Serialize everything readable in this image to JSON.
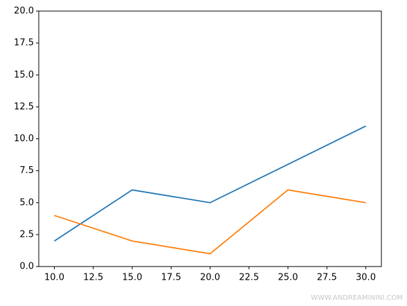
{
  "chart_data": {
    "type": "line",
    "x": [
      10,
      15,
      20,
      25,
      30
    ],
    "series": [
      {
        "color": "#1f77b4",
        "values": [
          2,
          6,
          5,
          8,
          11
        ]
      },
      {
        "color": "#ff7f0e",
        "values": [
          4,
          2,
          1,
          6,
          5
        ]
      }
    ],
    "xlim": [
      9,
      31
    ],
    "xticks": [
      {
        "value": 10,
        "label": "10.0"
      },
      {
        "value": 12.5,
        "label": "12.5"
      },
      {
        "value": 15,
        "label": "15.0"
      },
      {
        "value": 17.5,
        "label": "17.5"
      },
      {
        "value": 20,
        "label": "20.0"
      },
      {
        "value": 22.5,
        "label": "22.5"
      },
      {
        "value": 25,
        "label": "25.0"
      },
      {
        "value": 27.5,
        "label": "27.5"
      },
      {
        "value": 30,
        "label": "30.0"
      }
    ],
    "ylim": [
      0,
      20
    ],
    "yticks": [
      {
        "value": 0,
        "label": "0.0"
      },
      {
        "value": 2.5,
        "label": "2.5"
      },
      {
        "value": 5,
        "label": "5.0"
      },
      {
        "value": 7.5,
        "label": "7.5"
      },
      {
        "value": 10,
        "label": "10.0"
      },
      {
        "value": 12.5,
        "label": "12.5"
      },
      {
        "value": 15,
        "label": "15.0"
      },
      {
        "value": 17.5,
        "label": "17.5"
      },
      {
        "value": 20,
        "label": "20.0"
      }
    ],
    "grid": false,
    "watermark": "WWW.ANDREAMININI.COM"
  }
}
